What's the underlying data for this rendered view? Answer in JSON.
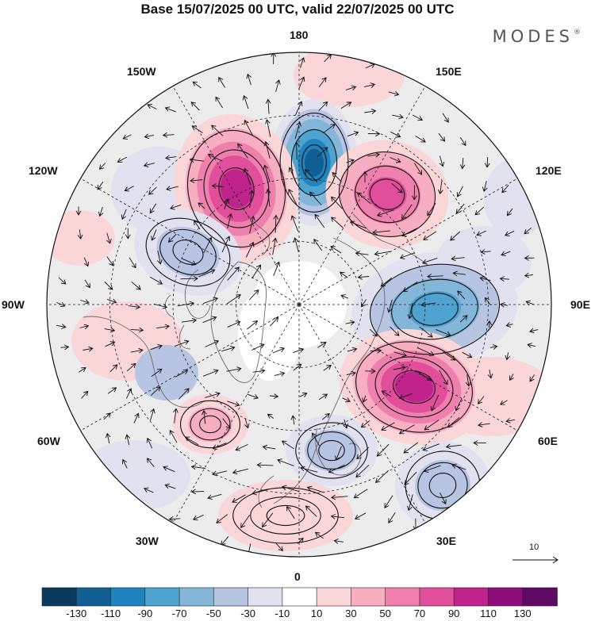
{
  "header": {
    "title": "Base 15/07/2025 00 UTC, valid 22/07/2025 00 UTC",
    "brand": "MODES",
    "brand_mark": "®"
  },
  "map": {
    "projection": "polar-stereographic-north",
    "field": "anomaly-shading-with-wind-vectors",
    "meridian_labels": {
      "lon_180": "180",
      "lon_150W": "150W",
      "lon_150E": "150E",
      "lon_120W": "120W",
      "lon_120E": "120E",
      "lon_90W": "90W",
      "lon_90E": "90E",
      "lon_60W": "60W",
      "lon_60E": "60E",
      "lon_30W": "30W",
      "lon_30E": "30E",
      "lon_0": "0"
    },
    "reference_vector": "10",
    "anomaly_centers": [
      {
        "value": -130,
        "region": "north-pacific-north"
      },
      {
        "value": 110,
        "region": "east-siberian-sea"
      },
      {
        "value": 90,
        "region": "chukchi-alaska"
      },
      {
        "value": -90,
        "region": "central-siberia"
      },
      {
        "value": 110,
        "region": "west-siberia"
      },
      {
        "value": -50,
        "region": "canada-west"
      },
      {
        "value": -50,
        "region": "scandinavia"
      },
      {
        "value": -50,
        "region": "eastern-europe"
      },
      {
        "value": 50,
        "region": "greenland-south"
      },
      {
        "value": 30,
        "region": "iberia-atlantic"
      }
    ]
  },
  "colorbar": {
    "labels": [
      "-130",
      "-110",
      "-90",
      "-70",
      "-50",
      "-30",
      "-10",
      "10",
      "30",
      "50",
      "70",
      "90",
      "110",
      "130"
    ],
    "colors": [
      "#0a3a5e",
      "#125f94",
      "#1f84bd",
      "#4ea3d0",
      "#84b6da",
      "#b7c4e2",
      "#e1e1ef",
      "#ffffff",
      "#fbd6d9",
      "#f6aec0",
      "#ef80ad",
      "#e04e9c",
      "#c0238c",
      "#8d0e7b",
      "#5e0a64"
    ]
  }
}
